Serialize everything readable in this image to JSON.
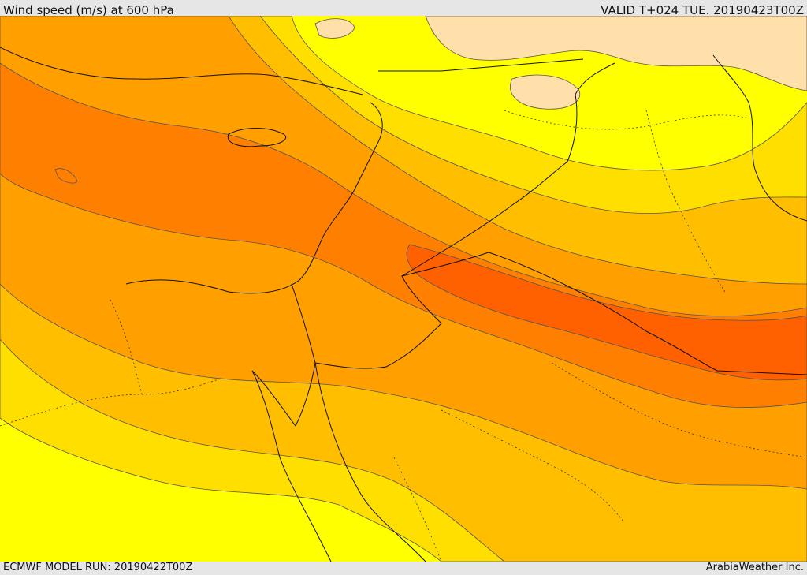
{
  "header": {
    "title": "Wind speed (m/s) at 600 hPa",
    "valid": "VALID T+024 TUE. 20190423T00Z"
  },
  "footer": {
    "model_run": "ECMWF MODEL RUN: 20190422T00Z",
    "credit": "ArabiaWeather Inc."
  },
  "colors": {
    "background": "#e6e6e6",
    "level_1": "#ffff00",
    "level_2": "#ffdf00",
    "level_3": "#ffbf00",
    "level_4": "#ffa000",
    "level_5": "#ff8000",
    "level_6": "#ff6000",
    "calm": "#ffdfaa"
  }
}
